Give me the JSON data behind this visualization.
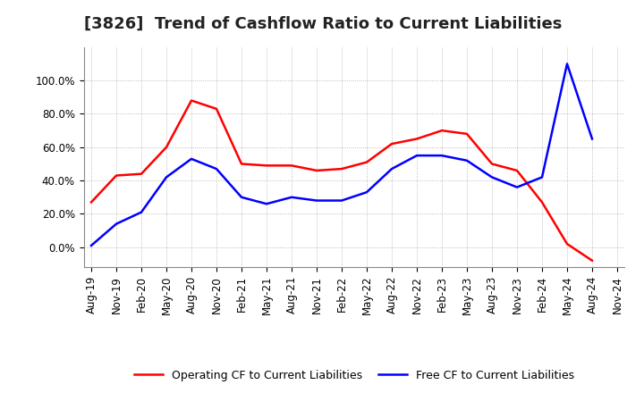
{
  "title": "[3826]  Trend of Cashflow Ratio to Current Liabilities",
  "x_labels": [
    "Aug-19",
    "Nov-19",
    "Feb-20",
    "May-20",
    "Aug-20",
    "Nov-20",
    "Feb-21",
    "May-21",
    "Aug-21",
    "Nov-21",
    "Feb-22",
    "May-22",
    "Aug-22",
    "Nov-22",
    "Feb-23",
    "May-23",
    "Aug-23",
    "Nov-23",
    "Feb-24",
    "May-24",
    "Aug-24",
    "Nov-24"
  ],
  "operating_cf": [
    0.27,
    0.43,
    0.44,
    0.6,
    0.88,
    0.83,
    0.5,
    0.49,
    0.49,
    0.46,
    0.47,
    0.51,
    0.62,
    0.65,
    0.7,
    0.68,
    0.5,
    0.46,
    0.27,
    0.02,
    -0.08,
    null
  ],
  "free_cf": [
    0.01,
    0.14,
    0.21,
    0.42,
    0.53,
    0.47,
    0.3,
    0.26,
    0.3,
    0.28,
    0.28,
    0.33,
    0.47,
    0.55,
    0.55,
    0.52,
    0.42,
    0.36,
    0.42,
    1.1,
    0.65,
    null
  ],
  "operating_color": "#ff0000",
  "free_color": "#0000ff",
  "ylim": [
    -0.12,
    1.2
  ],
  "yticks": [
    0.0,
    0.2,
    0.4,
    0.6,
    0.8,
    1.0
  ],
  "ytick_labels": [
    "0.0%",
    "20.0%",
    "40.0%",
    "60.0%",
    "80.0%",
    "100.0%"
  ],
  "legend_operating": "Operating CF to Current Liabilities",
  "legend_free": "Free CF to Current Liabilities",
  "background_color": "#ffffff",
  "grid_color": "#999999",
  "title_fontsize": 13,
  "tick_fontsize": 8.5,
  "legend_fontsize": 9
}
